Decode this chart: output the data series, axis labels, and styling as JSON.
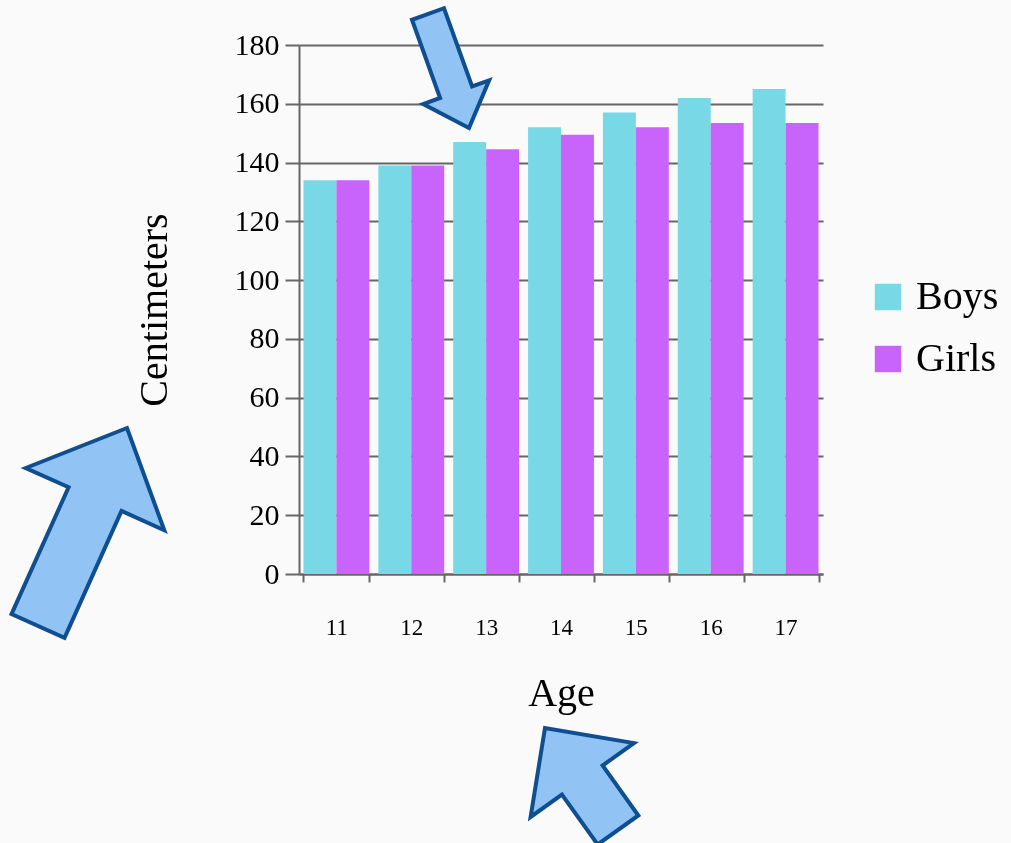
{
  "chart_data": {
    "type": "bar",
    "xlabel": "Age",
    "ylabel": "Centimeters",
    "categories": [
      "11",
      "12",
      "13",
      "14",
      "15",
      "16",
      "17"
    ],
    "series": [
      {
        "name": "Boys",
        "color": "#79d8e6",
        "values": [
          134,
          139,
          147,
          152,
          157,
          162,
          165
        ]
      },
      {
        "name": "Girls",
        "color": "#c864fb",
        "values": [
          134,
          139,
          144.5,
          149.5,
          152,
          153.5,
          153.5
        ]
      }
    ],
    "ylim": [
      0,
      180
    ],
    "yticks": [
      0,
      20,
      40,
      60,
      80,
      100,
      120,
      140,
      160,
      180
    ],
    "grid": "y",
    "legend": "right"
  }
}
